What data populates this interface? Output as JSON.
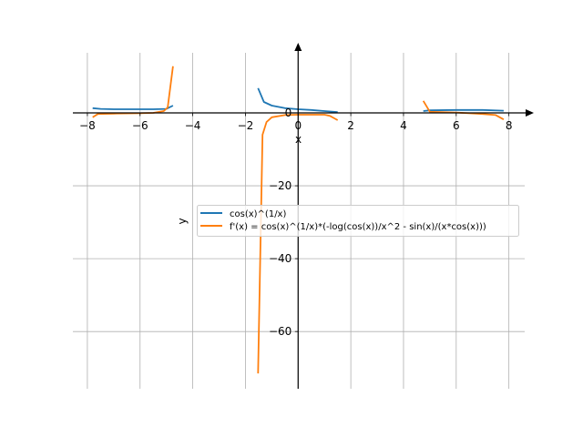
{
  "chart_data": {
    "type": "line",
    "title": "",
    "xlabel": "x",
    "ylabel": "y",
    "xlim": [
      -8.55,
      8.6
    ],
    "ylim": [
      -75.7,
      16.5
    ],
    "grid": true,
    "legend_position": "center-right",
    "x_ticks": [
      -8,
      -6,
      -4,
      -2,
      0,
      2,
      4,
      6,
      8
    ],
    "x_tick_labels": [
      "−8",
      "−6",
      "−4",
      "−2",
      "0",
      "2",
      "4",
      "6",
      "8"
    ],
    "y_ticks": [
      0,
      -20,
      -40,
      -60
    ],
    "y_tick_labels": [
      "0",
      "−20",
      "−40",
      "−60"
    ],
    "series": [
      {
        "name": "cos(x)^(1/x)",
        "color": "#1f77b4",
        "segments": [
          {
            "x": [
              -7.8,
              -7.5,
              -7.0,
              -6.5,
              -6.0,
              -5.5,
              -5.0,
              -4.75
            ],
            "y": [
              1.3,
              1.1,
              1.0,
              1.0,
              1.0,
              1.0,
              1.1,
              2.0
            ]
          },
          {
            "x": [
              -1.52,
              -1.3,
              -1.0,
              -0.5,
              0.0,
              0.5,
              1.0,
              1.5
            ],
            "y": [
              6.8,
              3.0,
              2.0,
              1.3,
              1.0,
              0.8,
              0.5,
              0.2
            ]
          },
          {
            "x": [
              4.75,
              5.0,
              6.0,
              7.0,
              7.8
            ],
            "y": [
              0.5,
              0.7,
              0.8,
              0.8,
              0.6
            ]
          }
        ]
      },
      {
        "name": "f'(x) = cos(x)^(1/x)*(-log(cos(x))/x^2 - sin(x)/(x*cos(x)))",
        "color": "#ff7f0e",
        "segments": [
          {
            "x": [
              -7.8,
              -7.6,
              -7.0,
              -6.0,
              -5.5,
              -5.1,
              -4.95,
              -4.75
            ],
            "y": [
              -1.2,
              -0.3,
              -0.2,
              -0.1,
              0.0,
              0.5,
              1.5,
              12.8
            ]
          },
          {
            "x": [
              -1.52,
              -1.35,
              -1.2,
              -1.0,
              -0.5,
              0.0,
              0.5,
              1.0,
              1.2,
              1.5
            ],
            "y": [
              -71.5,
              -6.0,
              -2.5,
              -1.2,
              -0.6,
              -0.5,
              -0.5,
              -0.5,
              -0.8,
              -2.0
            ]
          },
          {
            "x": [
              4.75,
              5.0,
              6.0,
              7.0,
              7.5,
              7.8
            ],
            "y": [
              3.3,
              0.3,
              0.1,
              -0.3,
              -0.6,
              -1.8
            ]
          }
        ]
      }
    ]
  }
}
